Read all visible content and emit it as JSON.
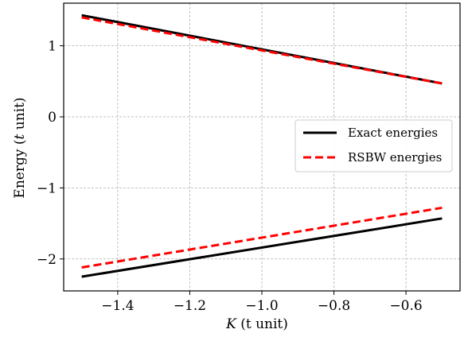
{
  "chart_data": {
    "type": "line",
    "xlabel": "K (t unit)",
    "xlabel_var": "K",
    "xlabel_rest": " (t unit)",
    "ylabel": "Energy (t unit)",
    "ylabel_pre": "Energy (",
    "ylabel_var": "t",
    "ylabel_post": " unit)",
    "xlim": [
      -1.55,
      -0.45
    ],
    "ylim": [
      -2.45,
      1.6
    ],
    "xticks": [
      -1.4,
      -1.2,
      -1.0,
      -0.8,
      -0.6
    ],
    "xtick_labels": [
      "−1.4",
      "−1.2",
      "−1.0",
      "−0.8",
      "−0.6"
    ],
    "yticks": [
      -2,
      -1,
      0,
      1
    ],
    "ytick_labels": [
      "−2",
      "−1",
      "0",
      "1"
    ],
    "grid": true,
    "legend_position": "center-right",
    "series": [
      {
        "name": "Exact energies",
        "color": "#000000",
        "dash": "solid",
        "x": [
          -1.5,
          -0.5
        ],
        "y": [
          1.43,
          0.47
        ]
      },
      {
        "name": "RSBW energies",
        "color": "#ff0000",
        "dash": "dashed",
        "x": [
          -1.5,
          -0.5
        ],
        "y": [
          1.4,
          0.47
        ]
      },
      {
        "name": "Exact energies",
        "color": "#000000",
        "dash": "solid",
        "x": [
          -1.5,
          -0.5
        ],
        "y": [
          -2.25,
          -1.43
        ]
      },
      {
        "name": "RSBW energies",
        "color": "#ff0000",
        "dash": "dashed",
        "x": [
          -1.5,
          -0.5
        ],
        "y": [
          -2.12,
          -1.28
        ]
      }
    ],
    "legend": [
      {
        "label": "Exact energies",
        "color": "#000000",
        "dash": "solid"
      },
      {
        "label": "RSBW energies",
        "color": "#ff0000",
        "dash": "dashed"
      }
    ]
  }
}
